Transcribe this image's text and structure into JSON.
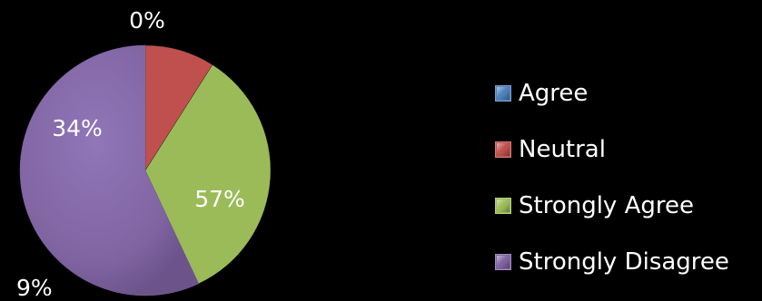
{
  "chart_data": {
    "type": "pie",
    "series": [
      {
        "name": "",
        "categories": [
          "Agree",
          "Neutral",
          "Strongly Agree",
          "Strongly Disagree"
        ],
        "values": [
          0,
          9,
          34,
          57
        ],
        "labels": [
          "0%",
          "9%",
          "34%",
          "57%"
        ]
      }
    ],
    "legend_position": "right",
    "colors": {
      "Agree": "#4F81BD",
      "Neutral": "#C0504D",
      "Strongly Agree": "#9BBB59",
      "Strongly Disagree": "#8064A2"
    }
  },
  "legend": {
    "items": [
      {
        "label": "Agree",
        "color": "#4F81BD"
      },
      {
        "label": "Neutral",
        "color": "#C0504D"
      },
      {
        "label": "Strongly Agree",
        "color": "#9BBB59"
      },
      {
        "label": "Strongly Disagree",
        "color": "#8064A2"
      }
    ]
  }
}
